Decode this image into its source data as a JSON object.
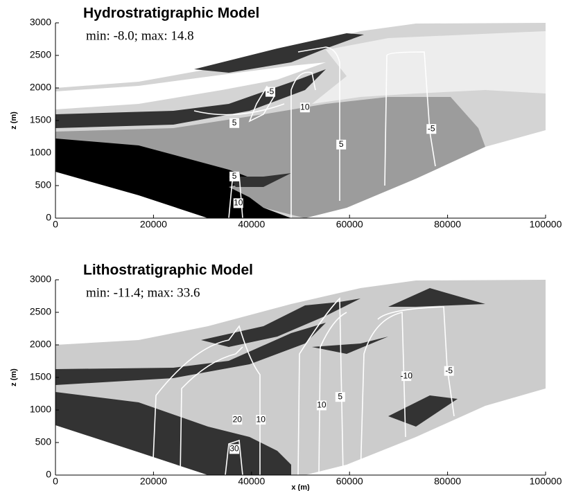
{
  "chart_data": [
    {
      "type": "contour",
      "title": "Hydrostratigraphic Model",
      "subtitle": "min: -8.0; max: 14.8",
      "ylabel": "z (m)",
      "xlim": [
        0,
        100000
      ],
      "ylim": [
        0,
        3000
      ],
      "xticks": [
        0,
        20000,
        40000,
        60000,
        80000,
        100000
      ],
      "yticks": [
        0,
        500,
        1000,
        1500,
        2000,
        2500,
        3000
      ],
      "annotations": [
        {
          "text": "-5",
          "x": 43850,
          "z": 1940
        },
        {
          "text": "10",
          "x": 50900,
          "z": 1700
        },
        {
          "text": "5",
          "x": 36500,
          "z": 1460
        },
        {
          "text": "5",
          "x": 58300,
          "z": 1130
        },
        {
          "text": "-5",
          "x": 76700,
          "z": 1370
        },
        {
          "text": "5",
          "x": 36500,
          "z": 640
        },
        {
          "text": "10",
          "x": 37300,
          "z": 230
        }
      ]
    },
    {
      "type": "contour",
      "title": "Lithostratigraphic Model",
      "subtitle": "min: -11.4; max: 33.6",
      "ylabel": "z (m)",
      "xlabel": "x (m)",
      "xlim": [
        0,
        100000
      ],
      "ylim": [
        0,
        3000
      ],
      "xticks": [
        0,
        20000,
        40000,
        60000,
        80000,
        100000
      ],
      "yticks": [
        0,
        500,
        1000,
        1500,
        2000,
        2500,
        3000
      ],
      "annotations": [
        {
          "text": "-10",
          "x": 71600,
          "z": 1520
        },
        {
          "text": "-5",
          "x": 80300,
          "z": 1600
        },
        {
          "text": "5",
          "x": 58100,
          "z": 1200
        },
        {
          "text": "10",
          "x": 54300,
          "z": 1070
        },
        {
          "text": "20",
          "x": 37100,
          "z": 850
        },
        {
          "text": "10",
          "x": 41900,
          "z": 850
        },
        {
          "text": "30",
          "x": 36500,
          "z": 400
        }
      ]
    }
  ]
}
